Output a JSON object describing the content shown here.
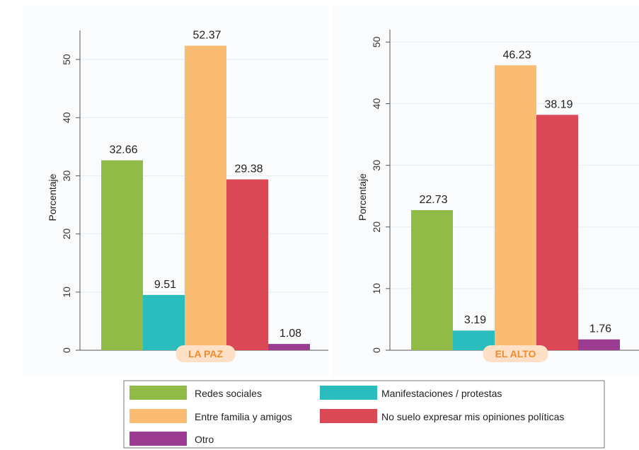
{
  "chart_data": [
    {
      "type": "bar",
      "panel_label": "LA PAZ",
      "ylabel": "Porcentaje",
      "ylim": [
        0,
        55
      ],
      "yticks": [
        0,
        10,
        20,
        30,
        40,
        50
      ],
      "series": [
        {
          "name": "Redes sociales",
          "values": [
            32.66
          ]
        },
        {
          "name": "Manifestaciones / protestas",
          "values": [
            9.51
          ]
        },
        {
          "name": "Entre familia y amigos",
          "values": [
            52.37
          ]
        },
        {
          "name": "No suelo expresar mis opiniones políticas",
          "values": [
            29.38
          ]
        },
        {
          "name": "Otro",
          "values": [
            1.08
          ]
        }
      ],
      "data_labels": [
        "32.66",
        "9.51",
        "52.37",
        "29.38",
        "1.08"
      ],
      "grid": true
    },
    {
      "type": "bar",
      "panel_label": "EL ALTO",
      "ylabel": "Porcentaje",
      "ylim": [
        0,
        52
      ],
      "yticks": [
        0,
        10,
        20,
        30,
        40,
        50
      ],
      "series": [
        {
          "name": "Redes sociales",
          "values": [
            22.73
          ]
        },
        {
          "name": "Manifestaciones / protestas",
          "values": [
            3.19
          ]
        },
        {
          "name": "Entre familia y amigos",
          "values": [
            46.23
          ]
        },
        {
          "name": "No suelo expresar mis opiniones políticas",
          "values": [
            38.19
          ]
        },
        {
          "name": "Otro",
          "values": [
            1.76
          ]
        }
      ],
      "data_labels": [
        "22.73",
        "3.19",
        "46.23",
        "38.19",
        "1.76"
      ],
      "grid": true
    }
  ],
  "legend": {
    "placement": "bottom",
    "items": [
      {
        "label": "Redes sociales",
        "color": "#8fbb46"
      },
      {
        "label": "Manifestaciones / protestas",
        "color": "#2bbcbd"
      },
      {
        "label": "Entre familia y amigos",
        "color": "#f9bc72"
      },
      {
        "label": "No suelo expresar mis opiniones políticas",
        "color": "#d94854"
      },
      {
        "label": "Otro",
        "color": "#9b3c91"
      }
    ]
  },
  "colors": {
    "series": [
      "#8fbb46",
      "#2bbcbd",
      "#f9bc72",
      "#d94854",
      "#9b3c91"
    ],
    "badge_fill": "#fde0c6",
    "badge_text": "#f28a2e",
    "grid": "#e6edf2"
  }
}
